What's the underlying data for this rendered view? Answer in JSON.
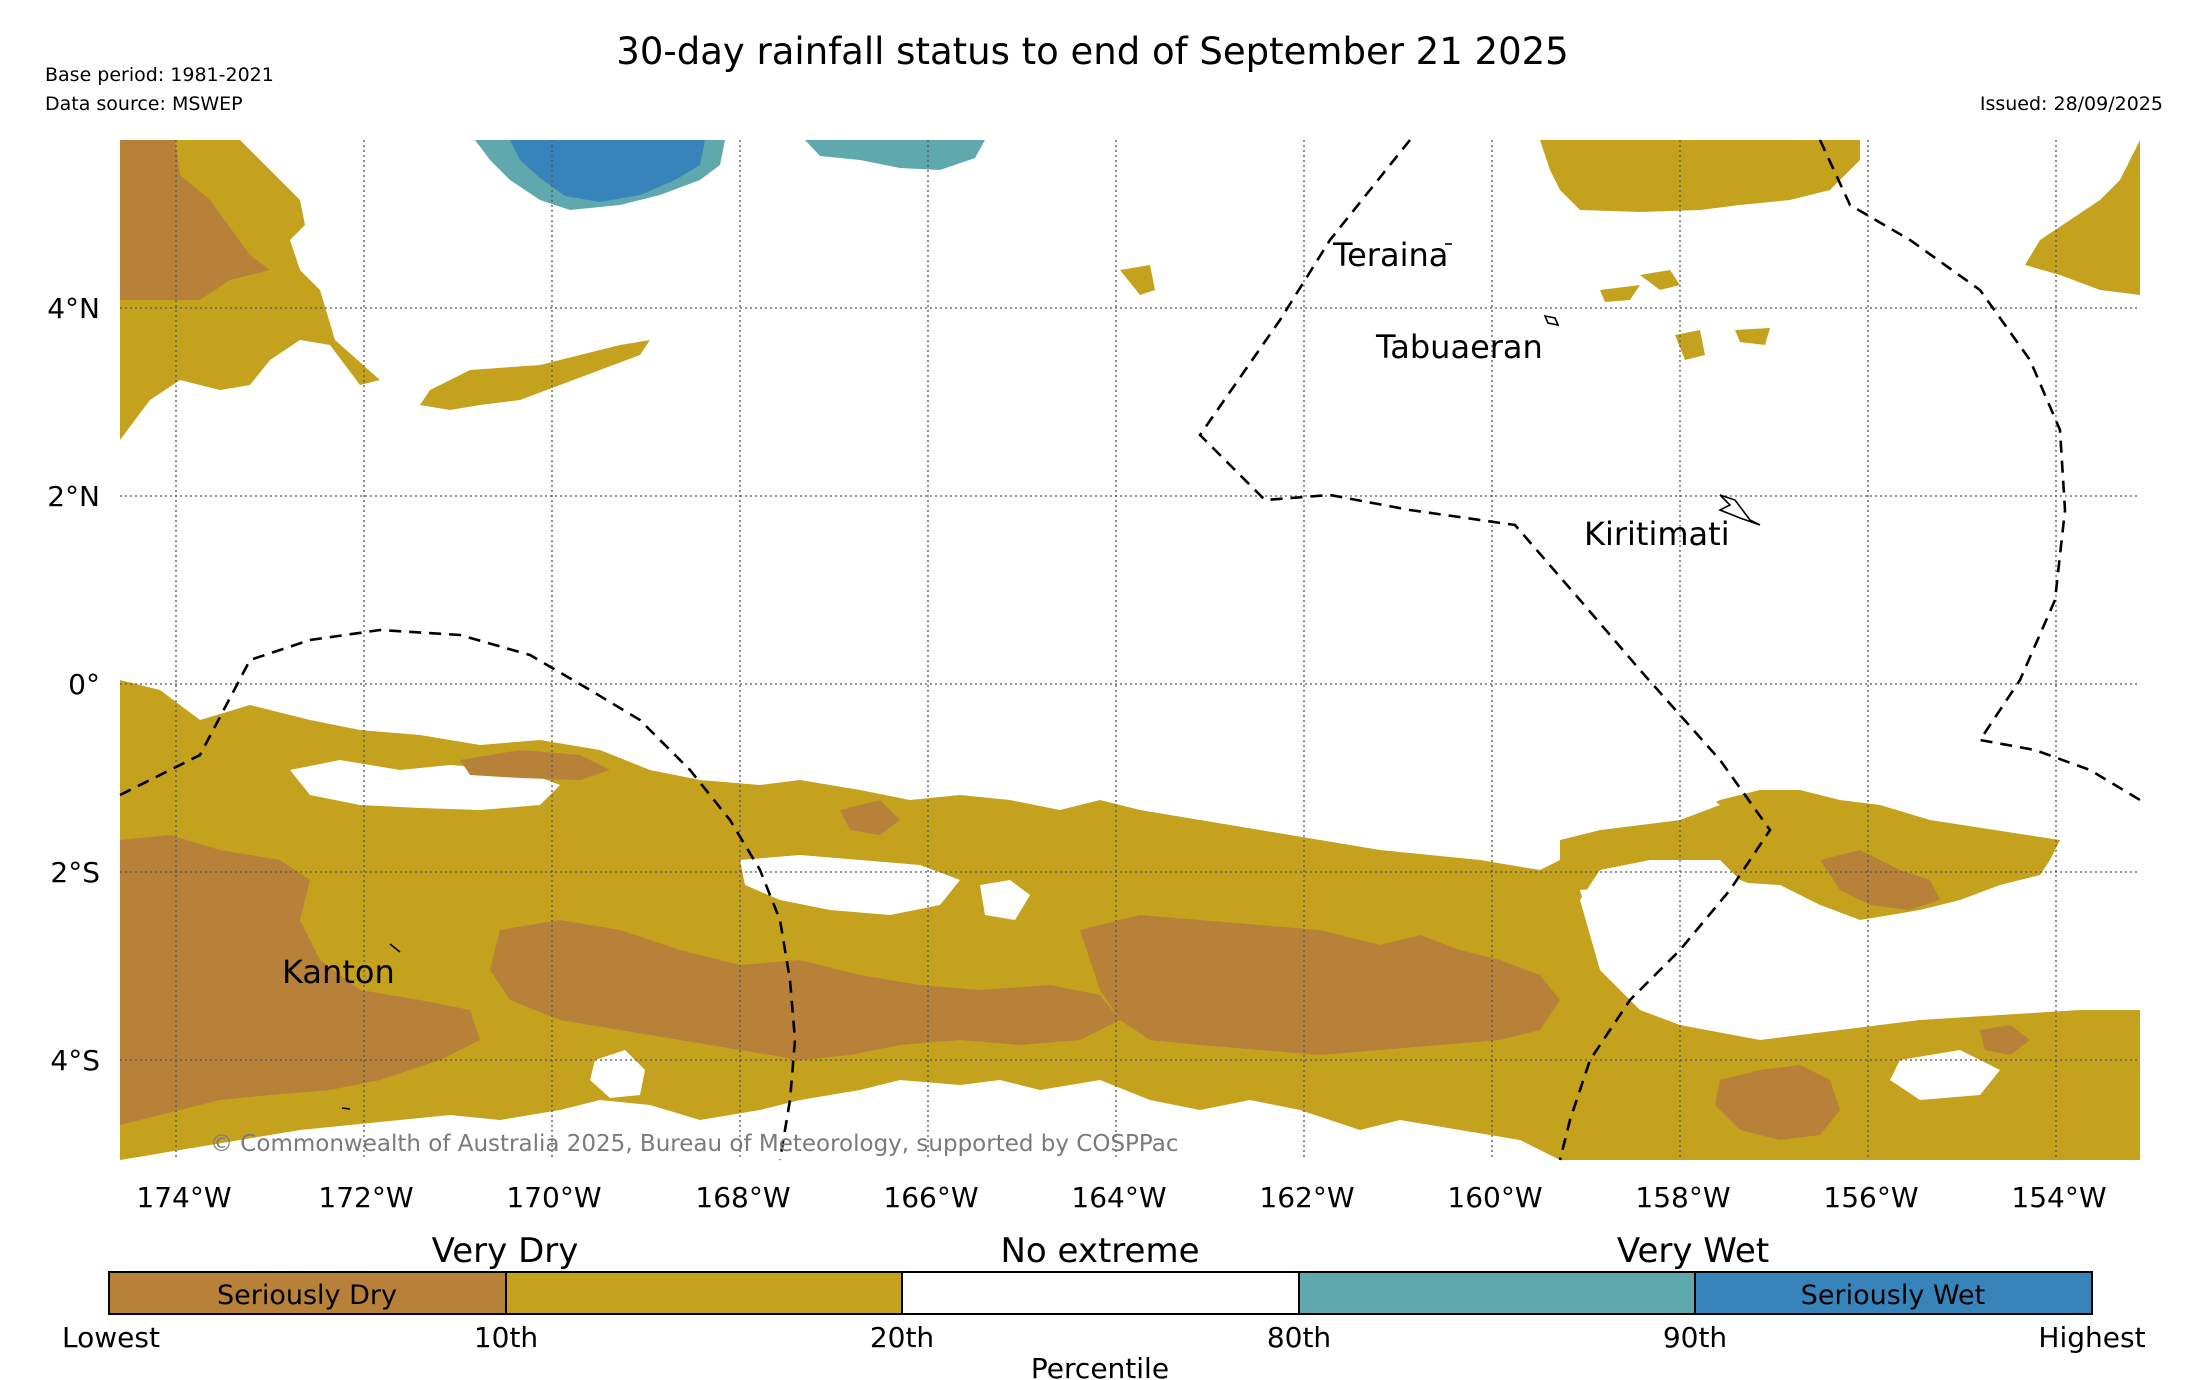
{
  "title": "30-day rainfall status to end of September 21 2025",
  "base_period": "Base period: 1981-2021",
  "data_source": "Data source: MSWEP",
  "issued": "Issued: 28/09/2025",
  "colors": {
    "seriously_dry": "#b8813a",
    "very_dry": "#c4a21e",
    "no_extreme": "#ffffff",
    "very_wet": "#5fa8ae",
    "seriously_wet": "#3784bb",
    "grid": "#555555",
    "copyright": "#7a7a7a"
  },
  "map": {
    "lat_labels": [
      "4°N",
      "2°N",
      "0°",
      "2°S",
      "4°S"
    ],
    "lon_labels": [
      "174°W",
      "172°W",
      "170°W",
      "168°W",
      "166°W",
      "164°W",
      "162°W",
      "160°W",
      "158°W",
      "156°W",
      "154°W"
    ],
    "places": {
      "teraina": "Teraina",
      "tabuaeran": "Tabuaeran",
      "kiritimati": "Kiritimati",
      "kanton": "Kanton"
    },
    "copyright": "© Commonwealth of Australia 2025, Bureau of Meteorology, supported by COSPPac"
  },
  "legend": {
    "category_titles": {
      "very_dry": "Very Dry",
      "no_extreme": "No extreme",
      "very_wet": "Very Wet"
    },
    "segment_labels": {
      "seriously_dry": "Seriously Dry",
      "seriously_wet": "Seriously Wet"
    },
    "ticks": [
      "Lowest",
      "10th",
      "20th",
      "80th",
      "90th",
      "Highest"
    ],
    "axis_label": "Percentile"
  }
}
